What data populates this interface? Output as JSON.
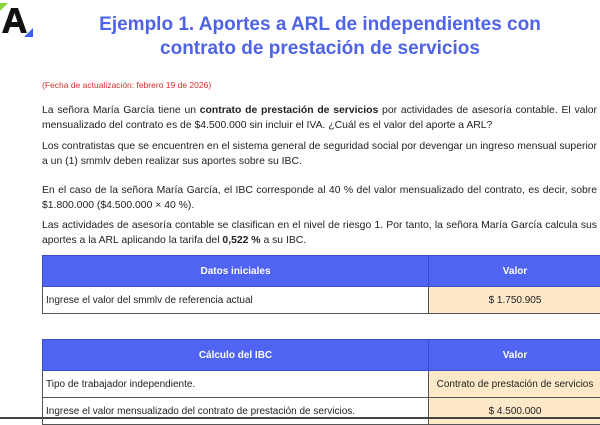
{
  "logo": {
    "letter": "A",
    "accent_top": "#8bd33b",
    "accent_bottom": "#3c5ff0"
  },
  "title": "Ejemplo 1. Aportes a ARL de independientes con contrato de prestación de servicios",
  "update_date": "(Fecha de actualización: febrero 19 de 2026)",
  "paragraphs": {
    "p1": {
      "a": "La señora María García tiene un ",
      "b": "contrato de prestación de servicios",
      "c": " por actividades de asesoría contable. El valor mensualizado del contrato es de $4.500.000 sin incluir el IVA. ¿Cuál es el valor del aporte a ARL?"
    },
    "p2": "Los contratistas que se encuentren en el sistema general de seguridad social por devengar un ingreso mensual superior a un (1) smmlv deben realizar sus aportes sobre su IBC.",
    "p3": "En el caso de la señora María García, el IBC corresponde al 40 % del valor mensualizado del contrato, es decir, sobre $1.800.000 ($4.500.000 × 40 %).",
    "p4": {
      "a": "Las actividades de asesoría contable se clasifican en el nivel de riesgo 1. Por tanto, la señora María García calcula sus aportes a la ARL aplicando la tarifa del ",
      "b": "0,522 %",
      "c": " a su IBC."
    }
  },
  "table1": {
    "headers": [
      "Datos iniciales",
      "Valor"
    ],
    "rows": [
      {
        "label": "Ingrese el valor del smmlv de referencia actual",
        "value": "$ 1.750.905"
      }
    ]
  },
  "table2": {
    "headers": [
      "Cálculo del IBC",
      "Valor"
    ],
    "rows": [
      {
        "label": "Tipo de trabajador independiente.",
        "value": "Contrato de prestación de servicios"
      },
      {
        "label": "Ingrese el valor mensualizado del contrato de prestación de servicios.",
        "value": "$ 4.500.000"
      }
    ]
  },
  "colors": {
    "header": "#4f64f3",
    "title": "#4f63e6",
    "input_cell": "#fde8c8",
    "date": "#d0302a"
  }
}
